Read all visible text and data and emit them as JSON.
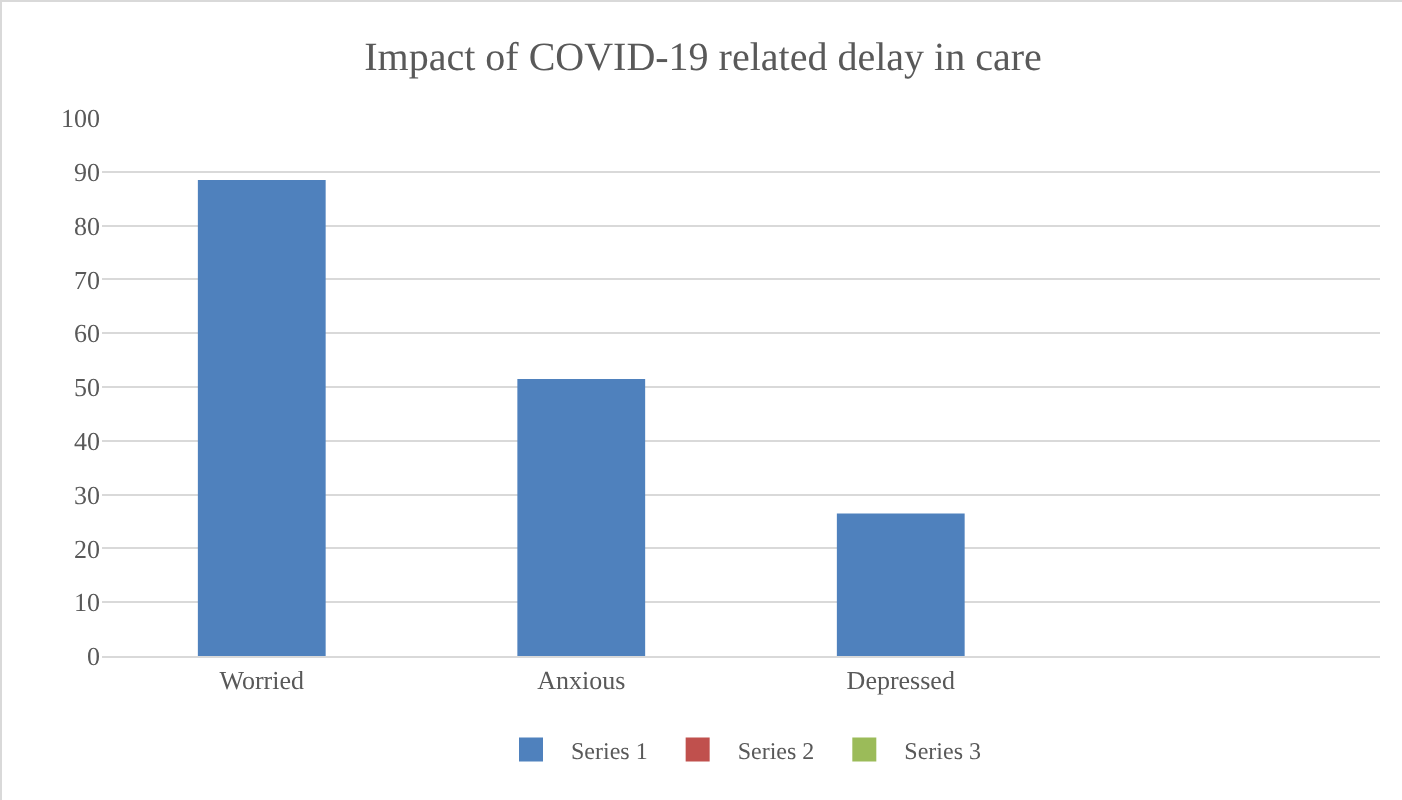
{
  "chart_data": {
    "type": "bar",
    "title": "Impact of COVID-19 related delay in care",
    "categories": [
      "Worried",
      "Anxious",
      "Depressed",
      null
    ],
    "series": [
      {
        "name": "Series 1",
        "color": "#4f81bd",
        "values": [
          88.5,
          51.5,
          26.5,
          null
        ]
      },
      {
        "name": "Series 2",
        "color": "#c0504d",
        "values": [
          null,
          null,
          null,
          null
        ]
      },
      {
        "name": "Series 3",
        "color": "#9bbb59",
        "values": [
          null,
          null,
          null,
          null
        ]
      }
    ],
    "ylim": [
      0,
      100
    ],
    "yticks": [
      0,
      10,
      20,
      30,
      40,
      50,
      60,
      70,
      80,
      90,
      100
    ],
    "grid": "y",
    "legend": "bottom"
  }
}
